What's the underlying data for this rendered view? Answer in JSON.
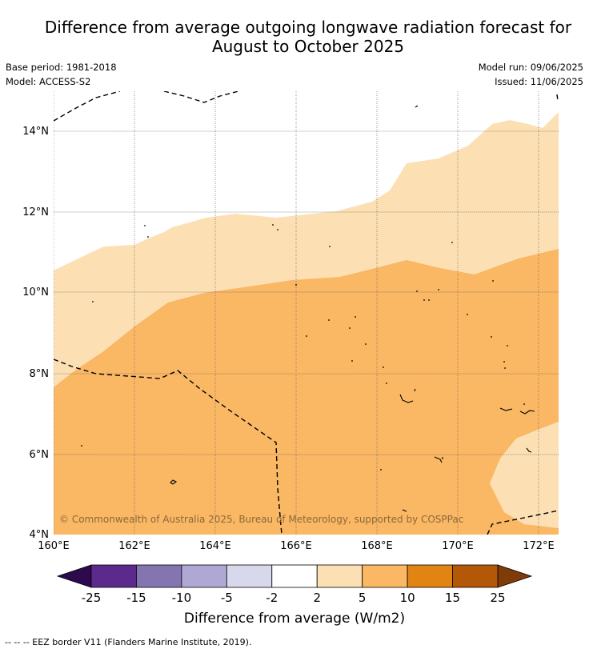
{
  "title": {
    "line1": "Difference from average outgoing longwave radiation forecast for",
    "line2": "August to October 2025"
  },
  "meta": {
    "base_period": "Base period: 1981-2018",
    "model": "Model: ACCESS-S2",
    "model_run": "Model run: 09/06/2025",
    "issued": "Issued: 11/06/2025"
  },
  "map": {
    "lon_ticks": [
      "160°E",
      "162°E",
      "164°E",
      "166°E",
      "168°E",
      "170°E",
      "172°E"
    ],
    "lat_ticks": [
      "14°N",
      "12°N",
      "10°N",
      "8°N",
      "6°N",
      "4°N"
    ],
    "copyright": "© Commonwealth of Australia 2025, Bureau of Meteorology, supported by COSPPac",
    "colors": {
      "band_2_5": "#fce0b4",
      "band_5_10": "#fab764",
      "eez_border": "#000000"
    }
  },
  "colorbar": {
    "ticks": [
      "-25",
      "-15",
      "-10",
      "-5",
      "-2",
      "2",
      "5",
      "10",
      "15",
      "25"
    ],
    "colors": [
      "#5c2a8c",
      "#8474b0",
      "#b0a8d4",
      "#d8d8ec",
      "#ffffff",
      "#fce0b4",
      "#fab764",
      "#e28414",
      "#b35806"
    ],
    "extend_low_color": "#2d0a4e",
    "extend_high_color": "#7f3b08",
    "label": "Difference from average (W/m2)"
  },
  "footer": {
    "legend": "--  --  -- EEZ border V11 (Flanders Marine Institute, 2019)."
  }
}
